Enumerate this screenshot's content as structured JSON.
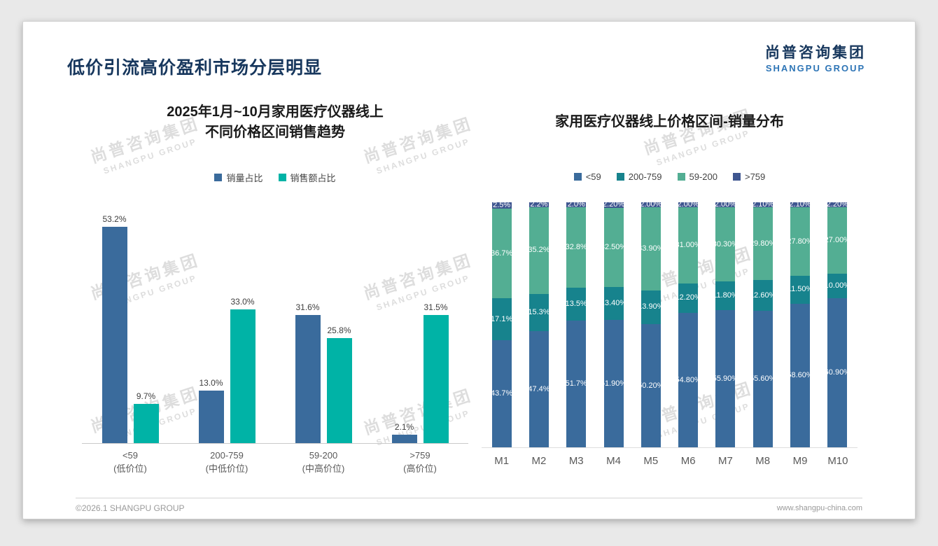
{
  "page": {
    "title": "低价引流高价盈利市场分层明显",
    "logo": {
      "cn": "尚普咨询集团",
      "en": "SHANGPU GROUP"
    },
    "watermark": {
      "cn": "尚普咨询集团",
      "en": "SHANGPU GROUP"
    },
    "footer": {
      "left": "©2026.1 SHANGPU GROUP",
      "right": "www.shangpu-china.com"
    }
  },
  "colors": {
    "title_navy": "#17375D",
    "logo_blue": "#2E75B6",
    "volume_blue": "#3A6B9C",
    "sales_teal": "#00B3A6",
    "segment_blue": "#3A6B9C",
    "segment_dark_teal": "#17838D",
    "segment_green": "#53AE93",
    "segment_navy": "#3F5690"
  },
  "chart_data": [
    {
      "type": "bar",
      "title_lines": [
        "2025年1月~10月家用医疗仪器线上",
        "不同价格区间销售趋势"
      ],
      "legend_position": "top",
      "grid": false,
      "ylim": [
        0,
        56
      ],
      "categories": [
        {
          "label": "<59",
          "sub": "(低价位)"
        },
        {
          "label": "200-759",
          "sub": "(中低价位)"
        },
        {
          "label": "59-200",
          "sub": "(中高价位)"
        },
        {
          "label": ">759",
          "sub": "(高价位)"
        }
      ],
      "series": [
        {
          "name": "销量占比",
          "color": "#3A6B9C",
          "values": [
            53.2,
            13.0,
            31.6,
            2.1
          ],
          "labels": [
            "53.2%",
            "13.0%",
            "31.6%",
            "2.1%"
          ]
        },
        {
          "name": "销售额占比",
          "color": "#00B3A6",
          "values": [
            9.7,
            33.0,
            25.8,
            31.5
          ],
          "labels": [
            "9.7%",
            "33.0%",
            "25.8%",
            "31.5%"
          ]
        }
      ]
    },
    {
      "type": "stacked-bar",
      "title": "家用医疗仪器线上价格区间-销量分布",
      "legend_position": "top",
      "grid": false,
      "ylim": [
        0,
        100
      ],
      "stack_order_bottom_to_top": [
        "<59",
        "200-759",
        "59-200",
        ">759"
      ],
      "categories": [
        "M1",
        "M2",
        "M3",
        "M4",
        "M5",
        "M6",
        "M7",
        "M8",
        "M9",
        "M10"
      ],
      "series": [
        {
          "name": "<59",
          "color": "#3A6B9C",
          "values": [
            43.7,
            47.4,
            51.7,
            51.9,
            50.2,
            54.8,
            55.9,
            55.6,
            58.6,
            60.9
          ],
          "labels": [
            "43.7%",
            "47.4%",
            "51.7%",
            "51.90%",
            "50.20%",
            "54.80%",
            "55.90%",
            "55.60%",
            "58.60%",
            "60.90%"
          ]
        },
        {
          "name": "200-759",
          "color": "#17838D",
          "values": [
            17.1,
            15.3,
            13.5,
            13.4,
            13.9,
            12.2,
            11.8,
            12.6,
            11.5,
            10.0
          ],
          "labels": [
            "17.1%",
            "15.3%",
            "13.5%",
            "13.40%",
            "13.90%",
            "12.20%",
            "11.80%",
            "12.60%",
            "11.50%",
            "10.00%"
          ]
        },
        {
          "name": "59-200",
          "color": "#53AE93",
          "values": [
            36.7,
            35.2,
            32.8,
            32.5,
            33.9,
            31.0,
            30.3,
            29.8,
            27.8,
            27.0
          ],
          "labels": [
            "36.7%",
            "35.2%",
            "32.8%",
            "32.50%",
            "33.90%",
            "31.00%",
            "30.30%",
            "29.80%",
            "27.80%",
            "27.00%"
          ]
        },
        {
          "name": ">759",
          "color": "#3F5690",
          "values": [
            2.5,
            2.2,
            2.0,
            2.2,
            2.0,
            2.0,
            2.0,
            2.1,
            2.1,
            2.2
          ],
          "labels": [
            "2.5%",
            "2.2%",
            "2.0%",
            "2.20%",
            "2.00%",
            "2.00%",
            "2.00%",
            "2.10%",
            "2.10%",
            "2.20%"
          ]
        }
      ]
    }
  ]
}
